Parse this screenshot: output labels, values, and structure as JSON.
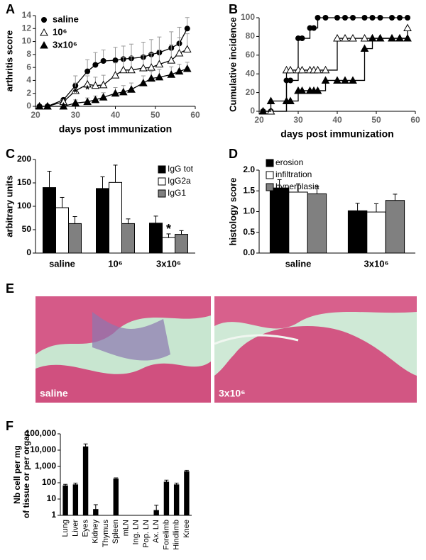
{
  "chart_data": [
    {
      "type": "line",
      "panel": "A",
      "xlabel": "days post immunization",
      "ylabel": "arthritis score",
      "x": [
        21,
        23,
        27,
        30,
        33,
        35,
        37,
        40,
        42,
        44,
        47,
        49,
        51,
        54,
        56,
        58
      ],
      "xlim": [
        20,
        60
      ],
      "xticks": [
        20,
        30,
        40,
        50,
        60
      ],
      "ylim": [
        0,
        14
      ],
      "yticks": [
        0,
        2,
        4,
        6,
        8,
        10,
        12,
        14
      ],
      "legend": "top-left",
      "series": [
        {
          "name": "saline",
          "color": "#000000",
          "marker": "circle",
          "values": [
            0,
            0,
            1.0,
            3.2,
            5.4,
            6.4,
            7.0,
            7.1,
            7.3,
            7.4,
            7.6,
            8.0,
            8.3,
            9.0,
            9.7,
            12.0
          ],
          "errors": [
            0,
            0,
            0.3,
            1.5,
            1.8,
            1.9,
            1.7,
            2.0,
            2.0,
            2.2,
            2.3,
            2.3,
            2.4,
            2.5,
            2.5,
            1.7
          ]
        },
        {
          "name": "10⁶",
          "color": "#000000",
          "marker": "triangle-open",
          "values": [
            0,
            0,
            0.7,
            2.4,
            3.4,
            3.2,
            3.3,
            4.8,
            5.6,
            5.6,
            5.9,
            6.0,
            6.5,
            7.1,
            8.2,
            8.8
          ],
          "errors": [
            0,
            0,
            0.3,
            1.2,
            1.3,
            1.3,
            1.5,
            1.9,
            2.0,
            2.1,
            2.0,
            2.2,
            2.2,
            2.4,
            2.4,
            2.4
          ]
        },
        {
          "name": "3x10⁶",
          "color": "#000000",
          "marker": "triangle",
          "values": [
            0,
            0,
            0,
            0.5,
            0.7,
            1.0,
            1.4,
            2.0,
            2.2,
            2.6,
            3.6,
            4.3,
            4.5,
            4.9,
            5.4,
            5.8
          ],
          "errors": [
            0,
            0,
            0,
            0.5,
            0.6,
            0.6,
            0.7,
            0.9,
            1.0,
            1.0,
            1.1,
            1.1,
            1.2,
            1.2,
            1.1,
            1.0
          ]
        }
      ],
      "annotations": [
        {
          "text": "*",
          "x": 30,
          "y": 2.0
        },
        {
          "text": "*",
          "x": 33,
          "y": 2.5
        }
      ]
    },
    {
      "type": "step",
      "panel": "B",
      "xlabel": "days post immunization",
      "ylabel": "Cumulative incidence",
      "x": [
        21,
        23,
        27,
        28,
        30,
        31,
        33,
        34,
        35,
        37,
        40,
        42,
        44,
        47,
        49,
        51,
        54,
        56,
        58
      ],
      "xlim": [
        20,
        60
      ],
      "xticks": [
        20,
        30,
        40,
        50,
        60
      ],
      "ylim": [
        0,
        100
      ],
      "yticks": [
        0,
        20,
        40,
        60,
        80,
        100
      ],
      "series": [
        {
          "name": "saline",
          "color": "#000000",
          "marker": "circle",
          "values": [
            0,
            0,
            33,
            33,
            78,
            78,
            89,
            89,
            100,
            100,
            100,
            100,
            100,
            100,
            100,
            100,
            100,
            100,
            100
          ]
        },
        {
          "name": "10⁶",
          "color": "#000000",
          "marker": "triangle-open",
          "values": [
            0,
            0,
            44,
            44,
            44,
            44,
            44,
            44,
            44,
            44,
            78,
            78,
            78,
            78,
            78,
            78,
            78,
            78,
            89
          ]
        },
        {
          "name": "3x10⁶",
          "color": "#000000",
          "marker": "triangle",
          "values": [
            0,
            11,
            11,
            11,
            22,
            22,
            22,
            22,
            22,
            33,
            33,
            33,
            33,
            67,
            78,
            78,
            78,
            78,
            78
          ]
        }
      ]
    },
    {
      "type": "bar",
      "panel": "C",
      "ylabel": "arbitrary units",
      "categories": [
        "saline",
        "10⁶",
        "3x10⁶"
      ],
      "ylim": [
        0,
        200
      ],
      "yticks": [
        0,
        50,
        100,
        150,
        200
      ],
      "legend": "top-right",
      "series": [
        {
          "name": "IgG tot",
          "color": "#000000",
          "values": [
            140,
            138,
            64
          ],
          "errors": [
            35,
            25,
            15
          ]
        },
        {
          "name": "IgG2a",
          "color": "#ffffff",
          "values": [
            97,
            151,
            33
          ],
          "errors": [
            22,
            37,
            8
          ]
        },
        {
          "name": "IgG1",
          "color": "#808080",
          "values": [
            63,
            63,
            40
          ],
          "errors": [
            15,
            10,
            8
          ]
        }
      ],
      "annotations": [
        {
          "text": "*",
          "category": "3x10⁶",
          "series": "IgG2a",
          "y": 50
        }
      ]
    },
    {
      "type": "bar",
      "panel": "D",
      "ylabel": "histology score",
      "categories": [
        "saline",
        "3x10⁶"
      ],
      "ylim": [
        0,
        2
      ],
      "yticks": [
        {
          "value": 0,
          "label": "0.0"
        },
        {
          "value": 0.5,
          "label": "0.5"
        },
        {
          "value": 1,
          "label": "1.0"
        },
        {
          "value": 1.5,
          "label": "1.5"
        },
        {
          "value": 2,
          "label": "2.0"
        }
      ],
      "legend": "top-left",
      "series": [
        {
          "name": "erosion",
          "color": "#000000",
          "values": [
            1.57,
            1.02
          ],
          "errors": [
            0.2,
            0.18
          ]
        },
        {
          "name": "infiltration",
          "color": "#ffffff",
          "values": [
            1.47,
            0.99
          ],
          "errors": [
            0.2,
            0.2
          ]
        },
        {
          "name": "hyperplasia",
          "color": "#808080",
          "values": [
            1.43,
            1.27
          ],
          "errors": [
            0.18,
            0.15
          ]
        }
      ]
    },
    {
      "type": "bar",
      "panel": "F",
      "ylabel": [
        "Nb cell per mg",
        "of tissue or per organ"
      ],
      "log_scale": true,
      "categories": [
        "Lung",
        "Liver",
        "Eyes",
        "Kidney",
        "Thymus",
        "Spleen",
        "mLN",
        "Ing. LN",
        "Pop. LN",
        "Ax. LN",
        "Forelimb",
        "Hindlimb",
        "Knee"
      ],
      "ylim": [
        1,
        100000
      ],
      "yticks": [
        1,
        10,
        100,
        {
          "value": 1000,
          "label": "1,000"
        },
        {
          "value": 10000,
          "label": "10,000"
        },
        {
          "value": 100000,
          "label": "100,000"
        }
      ],
      "color": "#000000",
      "values": [
        65,
        75,
        16000,
        2.3,
        null,
        170,
        null,
        null,
        null,
        2,
        110,
        75,
        480
      ],
      "errors": [
        15,
        20,
        8000,
        2.2,
        null,
        30,
        null,
        null,
        null,
        2.2,
        35,
        20,
        100
      ]
    }
  ],
  "figure_e": {
    "panel": "E",
    "labels": [
      "saline",
      "3x10⁶"
    ]
  }
}
